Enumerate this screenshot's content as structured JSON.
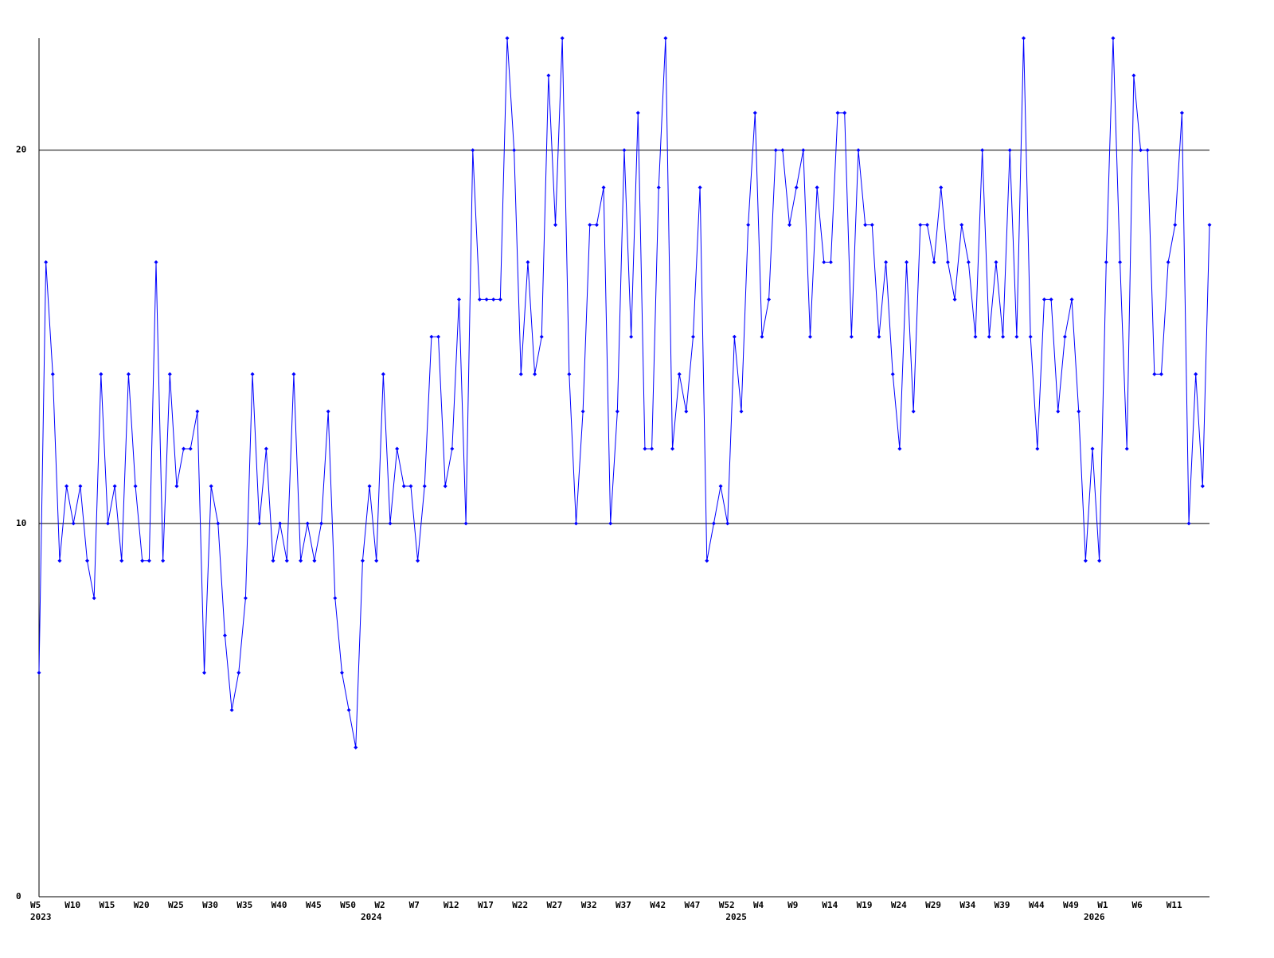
{
  "chart_data": {
    "type": "line",
    "categories": [
      "W5",
      null,
      null,
      null,
      null,
      "W10",
      null,
      null,
      null,
      null,
      "W15",
      null,
      null,
      null,
      null,
      "W20",
      null,
      null,
      null,
      null,
      "W25",
      null,
      null,
      null,
      null,
      "W30",
      null,
      null,
      null,
      null,
      "W35",
      null,
      null,
      null,
      null,
      "W40",
      null,
      null,
      null,
      null,
      "W45",
      null,
      null,
      null,
      null,
      "W50",
      null,
      null,
      null,
      null,
      "W2",
      null,
      null,
      null,
      null,
      "W7",
      null,
      null,
      null,
      null,
      "W12",
      null,
      null,
      null,
      null,
      "W17",
      null,
      null,
      null,
      null,
      "W22",
      null,
      null,
      null,
      null,
      "W27",
      null,
      null,
      null,
      null,
      "W32",
      null,
      null,
      null,
      null,
      "W37",
      null,
      null,
      null,
      null,
      "W42",
      null,
      null,
      null,
      null,
      "W47",
      null,
      null,
      null,
      null,
      "W52",
      null,
      null,
      null,
      null,
      "W4",
      null,
      null,
      null,
      null,
      "W9",
      null,
      null,
      null,
      null,
      "W14",
      null,
      null,
      null,
      null,
      "W19",
      null,
      null,
      null,
      null,
      "W24",
      null,
      null,
      null,
      null,
      "W29",
      null,
      null,
      null,
      null,
      "W34",
      null,
      null,
      null,
      null,
      "W39",
      null,
      null,
      null,
      null,
      "W44",
      null,
      null,
      null,
      null,
      "W49",
      null,
      null,
      null,
      null,
      "W1",
      null,
      null,
      null,
      null,
      "W6",
      null,
      null,
      null,
      null,
      "W11",
      null,
      null,
      null,
      null,
      null
    ],
    "category_years": [
      "2023",
      null,
      null,
      null,
      null,
      null,
      null,
      null,
      null,
      null,
      null,
      null,
      null,
      null,
      null,
      null,
      null,
      null,
      null,
      null,
      null,
      null,
      null,
      null,
      null,
      null,
      null,
      null,
      null,
      null,
      null,
      null,
      null,
      null,
      null,
      null,
      null,
      null,
      null,
      null,
      null,
      null,
      null,
      null,
      null,
      null,
      null,
      null,
      "2024",
      null,
      null,
      null,
      null,
      null,
      null,
      null,
      null,
      null,
      null,
      null,
      null,
      null,
      null,
      null,
      null,
      null,
      null,
      null,
      null,
      null,
      null,
      null,
      null,
      null,
      null,
      null,
      null,
      null,
      null,
      null,
      null,
      null,
      null,
      null,
      null,
      null,
      null,
      null,
      null,
      null,
      null,
      null,
      null,
      null,
      null,
      null,
      null,
      null,
      null,
      null,
      null,
      "2025",
      null,
      null,
      null,
      null,
      null,
      null,
      null,
      null,
      null,
      null,
      null,
      null,
      null,
      null,
      null,
      null,
      null,
      null,
      null,
      null,
      null,
      null,
      null,
      null,
      null,
      null,
      null,
      null,
      null,
      null,
      null,
      null,
      null,
      null,
      null,
      null,
      null,
      null,
      null,
      null,
      null,
      null,
      null,
      null,
      null,
      null,
      null,
      null,
      null,
      null,
      null,
      "2026",
      null,
      null,
      null,
      null,
      null,
      null,
      null,
      null,
      null,
      null,
      null,
      null,
      null,
      null,
      null,
      null
    ],
    "values": [
      6,
      17,
      14,
      9,
      11,
      10,
      11,
      9,
      8,
      14,
      10,
      11,
      9,
      14,
      11,
      9,
      9,
      17,
      9,
      14,
      11,
      12,
      12,
      13,
      6,
      11,
      10,
      7,
      5,
      6,
      8,
      14,
      10,
      12,
      9,
      10,
      9,
      14,
      9,
      10,
      9,
      10,
      13,
      8,
      6,
      5,
      4,
      9,
      11,
      9,
      14,
      10,
      12,
      11,
      11,
      9,
      11,
      15,
      15,
      11,
      12,
      16,
      10,
      20,
      16,
      16,
      16,
      16,
      23,
      20,
      14,
      17,
      14,
      15,
      22,
      18,
      23,
      14,
      10,
      13,
      18,
      18,
      19,
      10,
      13,
      20,
      15,
      21,
      12,
      12,
      19,
      23,
      12,
      14,
      13,
      15,
      19,
      9,
      10,
      11,
      10,
      15,
      13,
      18,
      21,
      15,
      16,
      20,
      20,
      18,
      19,
      20,
      15,
      19,
      17,
      17,
      21,
      21,
      15,
      20,
      18,
      18,
      15,
      17,
      14,
      12,
      17,
      13,
      18,
      18,
      17,
      19,
      17,
      16,
      18,
      17,
      15,
      20,
      15,
      17,
      15,
      20,
      15,
      23,
      15,
      12,
      16,
      16,
      13,
      15,
      16,
      13,
      9,
      12,
      9,
      17,
      23,
      17,
      12,
      22,
      20,
      20,
      14,
      14,
      17,
      18,
      21,
      10,
      14,
      11,
      18
    ],
    "color": "#0000ff",
    "ylim": [
      0,
      23
    ],
    "yticks": [
      0,
      10,
      20
    ],
    "grid": true
  }
}
